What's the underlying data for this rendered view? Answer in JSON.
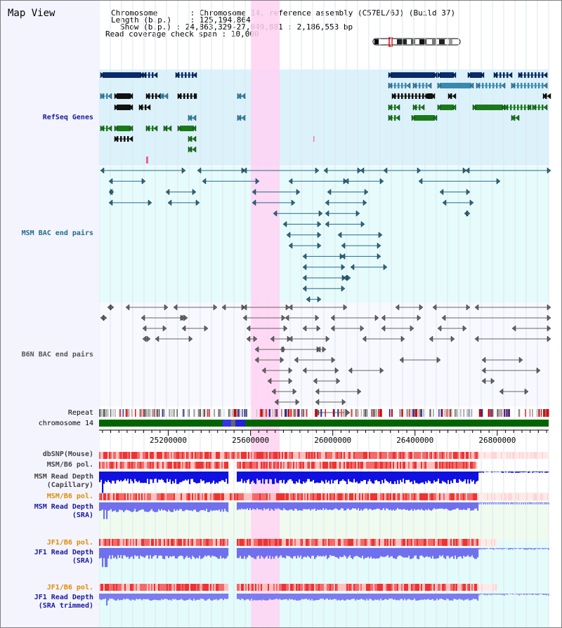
{
  "view_title": "Map View",
  "info": {
    "chromosome_label": "Chromosome",
    "chromosome_value": "Chromosome 14, reference assembly (C57BL/6J) (Build 37)",
    "length_label": "Length (b.p.)",
    "length_value": "125,194,864",
    "show_label": "Show (b.p.)",
    "show_value": "24,863,329-27,049,881 : 2,186,553 bp",
    "coverage_label": "Read coverage check span",
    "coverage_value": "10,000"
  },
  "tracks": {
    "refseq": "RefSeq Genes",
    "msm_bac": "MSM BAC end pairs",
    "b6n_bac": "B6N BAC end pairs",
    "repeat": "Repeat",
    "chromosome": "chromosome 14",
    "dbsnp": "dbSNP(Mouse)",
    "msm_b6_pol_1": "MSM/B6 pol.",
    "msm_depth_cap_1": "MSM Read Depth",
    "msm_depth_cap_2": "(Capillary)",
    "msm_b6_pol_2": "MSM/B6 pol.",
    "msm_depth_sra_1": "MSM Read Depth",
    "msm_depth_sra_2": "(SRA)",
    "jf1_pol_1": "JF1/B6 pol.",
    "jf1_depth_sra_1": "JF1 Read Depth",
    "jf1_depth_sra_2": "(SRA)",
    "jf1_pol_2": "JF1/B6 pol.",
    "jf1_depth_trim_1": "JF1 Read Depth",
    "jf1_depth_trim_2": "(SRA trimmed)"
  },
  "axis": {
    "range_bp": [
      24863329,
      27049881
    ],
    "ticks": [
      {
        "value": 25200000,
        "label": "25200000"
      },
      {
        "value": 25600000,
        "label": "25600000"
      },
      {
        "value": 26000000,
        "label": "26000000"
      },
      {
        "value": 26400000,
        "label": "26400000"
      },
      {
        "value": 26800000,
        "label": "26800000"
      }
    ]
  },
  "highlight_bp": [
    25600000,
    25740000
  ],
  "colors": {
    "refseq_bg": "#dcf2fb",
    "msm_bg": "#e6fbfb",
    "b6n_bg": "#f8f8ff",
    "highlight": "#ffd2f2",
    "navy_gene": "#0a2a6a",
    "teal_gene": "#3a8ab0",
    "black_gene": "#111111",
    "green_gene": "#1a7a1a",
    "msm_pair": "#2a6a8a",
    "b6n_pair": "#666666",
    "chromosome_band": "#006400",
    "depth_capillary": "#1010e0",
    "depth_sra": "#7070ee",
    "pol_hi": "#ee3333",
    "pol_lo": "#ffc0c0"
  }
}
